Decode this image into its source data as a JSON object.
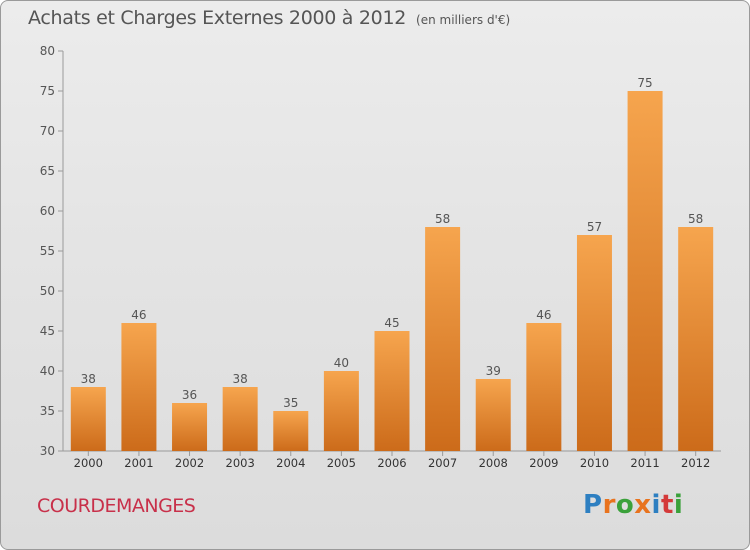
{
  "header": {
    "title": "Achats et Charges Externes 2000 à 2012",
    "unit": "(en milliers d'€)"
  },
  "footer": {
    "commune": "COURDEMANGES",
    "logo": "Proxiti",
    "logo_colors": [
      "#2d7fc1",
      "#e8731e",
      "#3aa13a",
      "#e8731e",
      "#2d7fc1",
      "#d43a3a",
      "#3aa13a"
    ]
  },
  "colors": {
    "bar_top": "#f6a54e",
    "bar_bottom": "#cc6b1a",
    "axis": "#555555",
    "grid": "#9a9a9a"
  },
  "chart_data": {
    "type": "bar",
    "title": "Achats et Charges Externes 2000 à 2012",
    "subtitle": "(en milliers d'€)",
    "categories": [
      "2000",
      "2001",
      "2002",
      "2003",
      "2004",
      "2005",
      "2006",
      "2007",
      "2008",
      "2009",
      "2010",
      "2011",
      "2012"
    ],
    "values": [
      38,
      46,
      36,
      38,
      35,
      40,
      45,
      58,
      39,
      46,
      57,
      75,
      58
    ],
    "ylim": [
      30,
      80
    ],
    "yticks": [
      30,
      35,
      40,
      45,
      50,
      55,
      60,
      65,
      70,
      75,
      80
    ],
    "grid": false,
    "data_labels": true
  }
}
